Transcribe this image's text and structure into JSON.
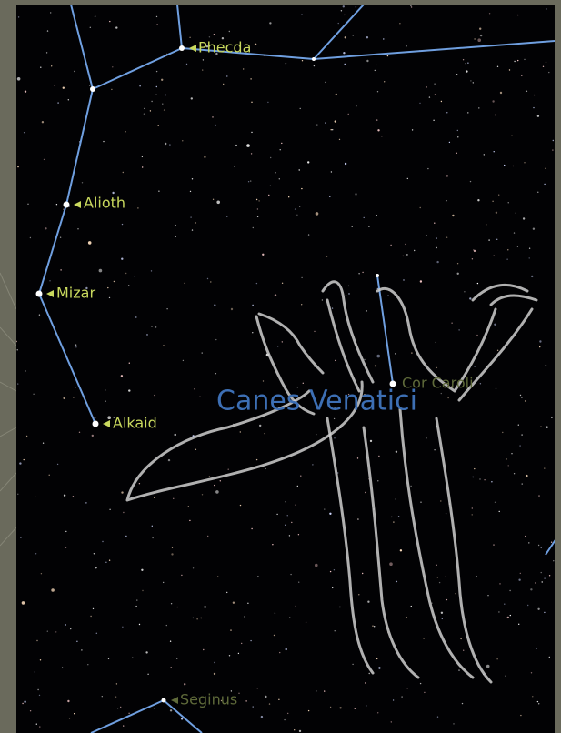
{
  "constellation": {
    "name": "Canes Venatici"
  },
  "stars": [
    {
      "label": "Phecda"
    },
    {
      "label": "Alioth"
    },
    {
      "label": "Mizar"
    },
    {
      "label": "Alkaid"
    },
    {
      "label": "Cor Caroli"
    },
    {
      "label": "Seginus"
    }
  ]
}
